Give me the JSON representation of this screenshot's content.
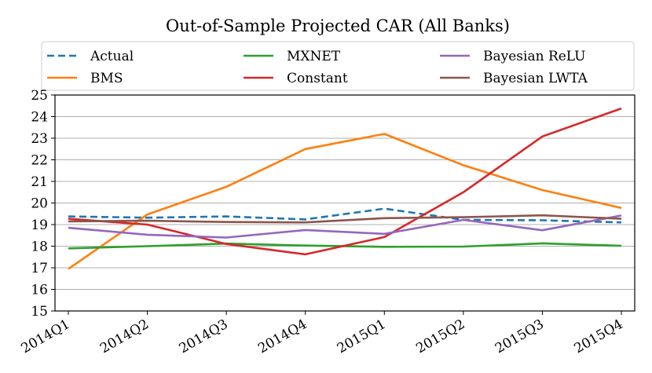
{
  "chart_data": {
    "type": "line",
    "title": "Out-of-Sample Projected CAR (All Banks)",
    "xlabel": "",
    "ylabel": "",
    "categories": [
      "2014Q1",
      "2014Q2",
      "2014Q3",
      "2014Q4",
      "2015Q1",
      "2015Q2",
      "2015Q3",
      "2015Q4"
    ],
    "ylim": [
      15,
      25
    ],
    "yticks": [
      15,
      16,
      17,
      18,
      19,
      20,
      21,
      22,
      23,
      24,
      25
    ],
    "grid": "horizontal",
    "legend_position": "top",
    "series": [
      {
        "name": "Actual",
        "color": "#1f77b4",
        "style": "dashed",
        "values": [
          19.38,
          19.32,
          19.38,
          19.24,
          19.74,
          19.22,
          19.2,
          19.1
        ]
      },
      {
        "name": "BMS",
        "color": "#ff7f0e",
        "style": "solid",
        "values": [
          16.95,
          19.47,
          20.75,
          22.5,
          23.2,
          21.75,
          20.6,
          19.77
        ]
      },
      {
        "name": "MXNET",
        "color": "#2ca02c",
        "style": "solid",
        "values": [
          17.9,
          18.0,
          18.12,
          18.03,
          17.97,
          17.98,
          18.13,
          18.02
        ]
      },
      {
        "name": "Constant",
        "color": "#d62728",
        "style": "solid",
        "values": [
          19.27,
          19.0,
          18.1,
          17.62,
          18.42,
          20.5,
          23.08,
          24.38
        ]
      },
      {
        "name": "Bayesian ReLU",
        "color": "#9467bd",
        "style": "solid",
        "values": [
          18.85,
          18.53,
          18.4,
          18.75,
          18.57,
          19.22,
          18.74,
          19.42
        ]
      },
      {
        "name": "Bayesian LWTA",
        "color": "#8c564b",
        "style": "solid",
        "values": [
          19.15,
          19.18,
          19.12,
          19.1,
          19.3,
          19.34,
          19.43,
          19.27
        ]
      }
    ]
  }
}
